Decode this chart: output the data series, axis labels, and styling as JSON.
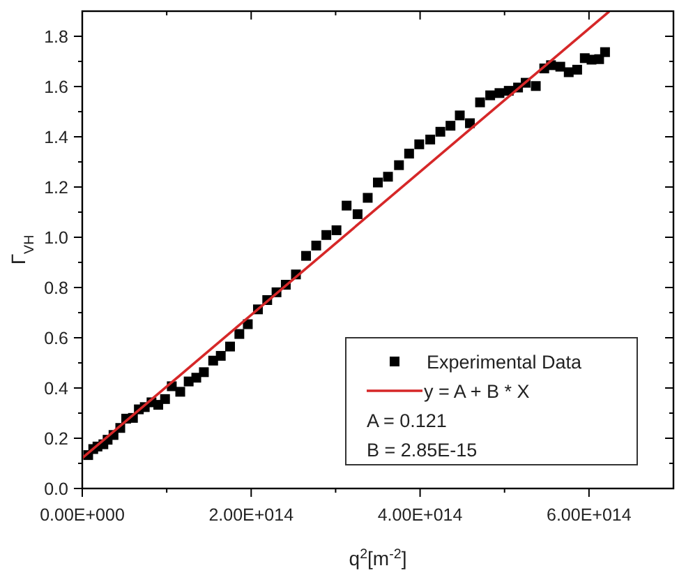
{
  "chart_data": {
    "type": "scatter",
    "xlabel": "q$^{2}$[m$^{-2}$]",
    "ylabel": "Γ$_{VH}$",
    "xlim": [
      0,
      700000000000000.0
    ],
    "ylim": [
      0,
      1.9
    ],
    "xticks": [
      {
        "value": 0,
        "label": "0.00E+000"
      },
      {
        "value": 100000000000000.0,
        "label": null
      },
      {
        "value": 200000000000000.0,
        "label": "2.00E+014"
      },
      {
        "value": 300000000000000.0,
        "label": null
      },
      {
        "value": 400000000000000.0,
        "label": "4.00E+014"
      },
      {
        "value": 500000000000000.0,
        "label": null
      },
      {
        "value": 600000000000000.0,
        "label": "6.00E+014"
      }
    ],
    "yticks": [
      {
        "value": 0,
        "label": "0.0"
      },
      {
        "value": 0.1,
        "label": null
      },
      {
        "value": 0.2,
        "label": "0.2"
      },
      {
        "value": 0.3,
        "label": null
      },
      {
        "value": 0.4,
        "label": "0.4"
      },
      {
        "value": 0.5,
        "label": null
      },
      {
        "value": 0.6,
        "label": "0.6"
      },
      {
        "value": 0.7,
        "label": null
      },
      {
        "value": 0.8,
        "label": "0.8"
      },
      {
        "value": 0.9,
        "label": null
      },
      {
        "value": 1.0,
        "label": "1.0"
      },
      {
        "value": 1.1,
        "label": null
      },
      {
        "value": 1.2,
        "label": "1.2"
      },
      {
        "value": 1.3,
        "label": null
      },
      {
        "value": 1.4,
        "label": "1.4"
      },
      {
        "value": 1.5,
        "label": null
      },
      {
        "value": 1.6,
        "label": "1.6"
      },
      {
        "value": 1.7,
        "label": null
      },
      {
        "value": 1.8,
        "label": "1.8"
      }
    ],
    "grid": false,
    "legend": "bottom right",
    "annotations": [
      "A = 0.121",
      "B = 2.85E-15"
    ],
    "series": [
      {
        "name": "Experimental Data",
        "marker": "square",
        "color": "#000000",
        "x": [
          7000000000000.0,
          13000000000000.0,
          18000000000000.0,
          25000000000000.0,
          30000000000000.0,
          37000000000000.0,
          45000000000000.0,
          52000000000000.0,
          60000000000000.0,
          67000000000000.0,
          74000000000000.0,
          82000000000000.0,
          90000000000000.0,
          98000000000000.0,
          106000000000000.0,
          116000000000000.0,
          126000000000000.0,
          135000000000000.0,
          144000000000000.0,
          155000000000000.0,
          164000000000000.0,
          175000000000000.0,
          186000000000000.0,
          196000000000000.0,
          208000000000000.0,
          219000000000000.0,
          230000000000000.0,
          241000000000000.0,
          253000000000000.0,
          265000000000000.0,
          277000000000000.0,
          289000000000000.0,
          301000000000000.0,
          313000000000000.0,
          326000000000000.0,
          338000000000000.0,
          350000000000000.0,
          362000000000000.0,
          375000000000000.0,
          387000000000000.0,
          399000000000000.0,
          412000000000000.0,
          424000000000000.0,
          436000000000000.0,
          447000000000000.0,
          459000000000000.0,
          471000000000000.0,
          483000000000000.0,
          494000000000000.0,
          505000000000000.0,
          516000000000000.0,
          525000000000000.0,
          537000000000000.0,
          547000000000000.0,
          555000000000000.0,
          566000000000000.0,
          576000000000000.0,
          586000000000000.0,
          595000000000000.0,
          603000000000000.0,
          612000000000000.0,
          619000000000000.0
        ],
        "values": [
          0.133,
          0.157,
          0.167,
          0.176,
          0.194,
          0.213,
          0.241,
          0.278,
          0.281,
          0.315,
          0.324,
          0.343,
          0.333,
          0.356,
          0.407,
          0.385,
          0.426,
          0.441,
          0.463,
          0.509,
          0.528,
          0.565,
          0.615,
          0.654,
          0.713,
          0.75,
          0.781,
          0.811,
          0.852,
          0.926,
          0.967,
          1.009,
          1.028,
          1.126,
          1.092,
          1.157,
          1.218,
          1.241,
          1.287,
          1.333,
          1.37,
          1.389,
          1.42,
          1.444,
          1.485,
          1.454,
          1.537,
          1.565,
          1.574,
          1.583,
          1.596,
          1.615,
          1.602,
          1.672,
          1.685,
          1.679,
          1.657,
          1.667,
          1.713,
          1.707,
          1.709,
          1.737
        ]
      },
      {
        "name": "y = A + B * X",
        "type": "line",
        "color": "#d62728",
        "line_style": "solid",
        "x": [
          0,
          624000000000000.0
        ],
        "values": [
          0.121,
          1.899
        ]
      }
    ]
  }
}
